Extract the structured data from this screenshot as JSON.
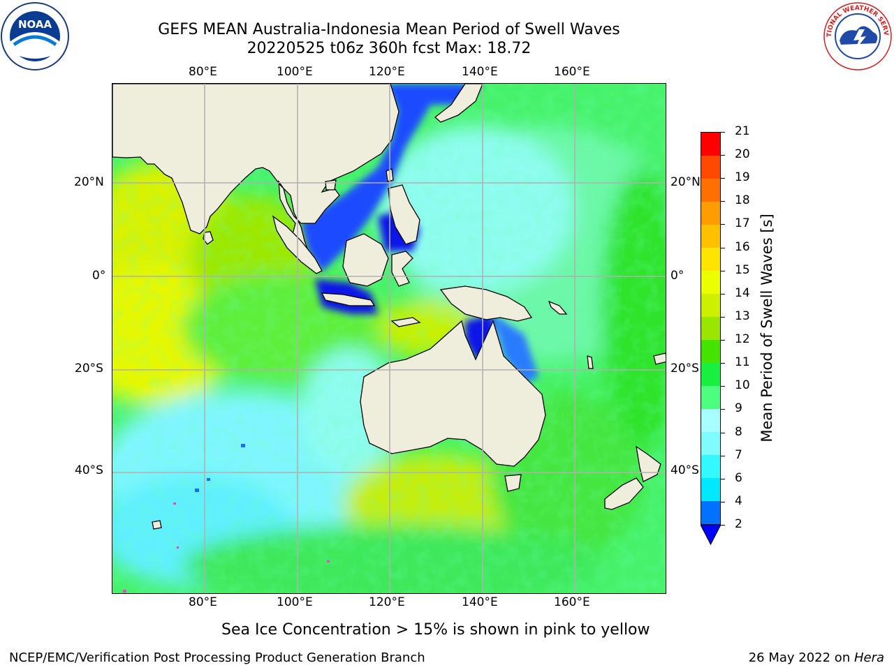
{
  "header": {
    "title_line1": "GEFS MEAN Australia-Indonesia Mean Period of Swell Waves",
    "title_line2": "20220525 t06z 360h fcst   Max: 18.72"
  },
  "logos": {
    "noaa_text": "NOAA",
    "nws_text": "NATIONAL WEATHER SERVICE"
  },
  "map": {
    "longitude_labels": [
      "80°E",
      "100°E",
      "120°E",
      "140°E",
      "160°E"
    ],
    "latitude_labels": [
      "20°N",
      "0°",
      "20°S",
      "40°S"
    ],
    "land_color": "#efeddc",
    "gridline_color": "#b0b0b0"
  },
  "colorbar": {
    "label": "Mean Period of Swell Waves [s]",
    "ticks": [
      "2",
      "4",
      "6",
      "7",
      "8",
      "9",
      "10",
      "11",
      "12",
      "13",
      "14",
      "15",
      "16",
      "17",
      "18",
      "19",
      "20",
      "21"
    ],
    "colors": [
      "#0072ff",
      "#00e8ff",
      "#33f8ff",
      "#7ffcff",
      "#a8ffff",
      "#4cff7f",
      "#18f040",
      "#44e400",
      "#9ae600",
      "#ccf000",
      "#ecff00",
      "#ffe400",
      "#ffc000",
      "#ff9c00",
      "#ff7000",
      "#ff4800",
      "#ff0000"
    ],
    "under_color": "#0000ff"
  },
  "footer": {
    "note": "Sea Ice Concentration > 15% is shown in pink to yellow",
    "credit": "NCEP/EMC/Verification Post Processing Product Generation Branch",
    "date": "26 May 2022 on ",
    "machine": "Hera"
  }
}
